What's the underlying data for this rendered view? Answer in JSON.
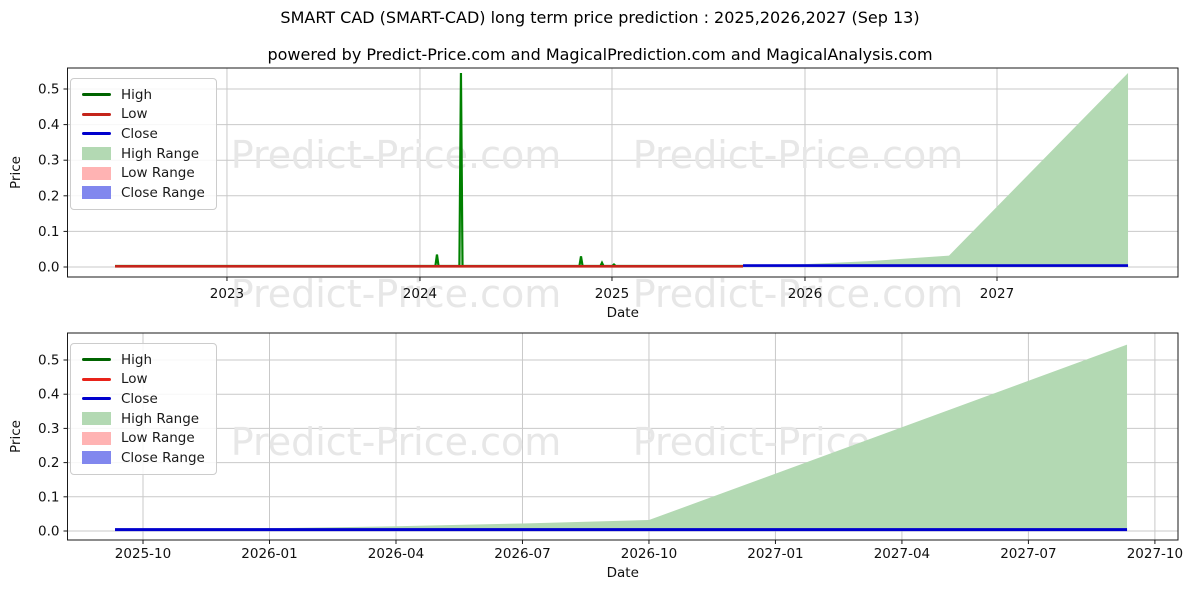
{
  "title": "SMART CAD (SMART-CAD) long term price prediction : 2025,2026,2027 (Sep 13)",
  "subtitle": "powered by Predict-Price.com and MagicalPrediction.com and MagicalAnalysis.com",
  "watermark": {
    "text": "Predict-Price.com",
    "color": "#e7e7e7"
  },
  "chart_data": [
    {
      "type": "line",
      "name": "price-history-and-prediction-by-year",
      "xlabel": "Date",
      "ylabel": "Price",
      "x_range": [
        "2022-03",
        "2027-12"
      ],
      "ylim": [
        -0.028,
        0.559
      ],
      "grid": true,
      "legend_position": "upper left",
      "yticks": [
        {
          "label": "0.0",
          "v": 0.0
        },
        {
          "label": "0.1",
          "v": 0.1
        },
        {
          "label": "0.2",
          "v": 0.2
        },
        {
          "label": "0.3",
          "v": 0.3
        },
        {
          "label": "0.4",
          "v": 0.4
        },
        {
          "label": "0.5",
          "v": 0.5
        }
      ],
      "xticks": [
        {
          "label": "2023",
          "f": 0.1436
        },
        {
          "label": "2024",
          "f": 0.3174
        },
        {
          "label": "2025",
          "f": 0.4903
        },
        {
          "label": "2026",
          "f": 0.6641
        },
        {
          "label": "2027",
          "f": 0.837
        }
      ],
      "series": [
        {
          "name": "High Range",
          "kind": "area",
          "color": "#b3d9b3",
          "base": 0,
          "points": [
            [
              0.6083,
              0.004
            ],
            [
              0.6641,
              0.008
            ],
            [
              0.72,
              0.016
            ],
            [
              0.7938,
              0.032
            ],
            [
              0.955,
              0.545
            ]
          ]
        },
        {
          "name": "Low Range",
          "kind": "area",
          "color": "#ffb3b3",
          "base": 0,
          "points": [
            [
              0.6083,
              0.003
            ],
            [
              0.955,
              0.003
            ]
          ]
        },
        {
          "name": "Close Range",
          "kind": "area",
          "color": "#8187ee",
          "base": 0.0005,
          "points": [
            [
              0.6083,
              0.0075
            ],
            [
              0.955,
              0.0075
            ]
          ]
        },
        {
          "name": "High",
          "kind": "line",
          "color": "#008000",
          "width": 2.2,
          "points": [
            [
              0.0428,
              0.003
            ],
            [
              0.3313,
              0.003
            ],
            [
              0.3327,
              0.035
            ],
            [
              0.3341,
              0.003
            ],
            [
              0.3529,
              0.003
            ],
            [
              0.3543,
              0.545
            ],
            [
              0.3557,
              0.003
            ],
            [
              0.461,
              0.003
            ],
            [
              0.4624,
              0.03
            ],
            [
              0.4638,
              0.003
            ],
            [
              0.4799,
              0.003
            ],
            [
              0.4813,
              0.012
            ],
            [
              0.4827,
              0.003
            ],
            [
              0.4907,
              0.003
            ],
            [
              0.4921,
              0.007
            ],
            [
              0.4935,
              0.003
            ],
            [
              0.6083,
              0.003
            ]
          ]
        },
        {
          "name": "Low",
          "kind": "line",
          "color": "#c4251b",
          "width": 2.6,
          "points": [
            [
              0.0428,
              0.002
            ],
            [
              0.6083,
              0.002
            ]
          ]
        },
        {
          "name": "Close",
          "kind": "line",
          "color": "#0000cd",
          "width": 2.6,
          "points": [
            [
              0.6083,
              0.004
            ],
            [
              0.955,
              0.004
            ]
          ]
        }
      ],
      "legend": [
        {
          "label": "High",
          "swatch": "line",
          "color": "#006400"
        },
        {
          "label": "Low",
          "swatch": "line",
          "color": "#c4251b"
        },
        {
          "label": "Close",
          "swatch": "line",
          "color": "#0000cd"
        },
        {
          "label": "High Range",
          "swatch": "patch",
          "color": "#b3d9b3"
        },
        {
          "label": "Low Range",
          "swatch": "patch",
          "color": "#ffb3b3"
        },
        {
          "label": "Close Range",
          "swatch": "patch",
          "color": "#8187ee"
        }
      ]
    },
    {
      "type": "line",
      "name": "price-prediction-by-quarter",
      "xlabel": "Date",
      "ylabel": "Price",
      "x_range": [
        "2025-08",
        "2027-11"
      ],
      "ylim": [
        -0.026,
        0.579
      ],
      "grid": true,
      "legend_position": "upper left",
      "yticks": [
        {
          "label": "0.0",
          "v": 0.0
        },
        {
          "label": "0.1",
          "v": 0.1
        },
        {
          "label": "0.2",
          "v": 0.2
        },
        {
          "label": "0.3",
          "v": 0.3
        },
        {
          "label": "0.4",
          "v": 0.4
        },
        {
          "label": "0.5",
          "v": 0.5
        }
      ],
      "xticks": [
        {
          "label": "2025-10",
          "f": 0.068
        },
        {
          "label": "2026-01",
          "f": 0.1819
        },
        {
          "label": "2026-04",
          "f": 0.2958
        },
        {
          "label": "2026-07",
          "f": 0.4097
        },
        {
          "label": "2026-10",
          "f": 0.5236
        },
        {
          "label": "2027-01",
          "f": 0.6375
        },
        {
          "label": "2027-04",
          "f": 0.7514
        },
        {
          "label": "2027-07",
          "f": 0.8653
        },
        {
          "label": "2027-10",
          "f": 0.9792
        }
      ],
      "series": [
        {
          "name": "High Range",
          "kind": "area",
          "color": "#b3d9b3",
          "base": 0,
          "points": [
            [
              0.0428,
              0.003
            ],
            [
              0.1819,
              0.008
            ],
            [
              0.2958,
              0.014
            ],
            [
              0.4097,
              0.022
            ],
            [
              0.5236,
              0.032
            ],
            [
              0.9541,
              0.545
            ]
          ]
        },
        {
          "name": "Low Range",
          "kind": "area",
          "color": "#ffb3b3",
          "base": 0,
          "points": [
            [
              0.0428,
              0.003
            ],
            [
              0.9541,
              0.003
            ]
          ]
        },
        {
          "name": "Close Range",
          "kind": "area",
          "color": "#8187ee",
          "base": 0.0005,
          "points": [
            [
              0.0428,
              0.0075
            ],
            [
              0.9541,
              0.0075
            ]
          ]
        },
        {
          "name": "Low",
          "kind": "line",
          "color": "#e8231a",
          "width": 2,
          "points": [
            [
              0.0428,
              0.003
            ],
            [
              0.9541,
              0.003
            ]
          ]
        },
        {
          "name": "Close",
          "kind": "line",
          "color": "#0000cd",
          "width": 3,
          "points": [
            [
              0.0428,
              0.004
            ],
            [
              0.9541,
              0.004
            ]
          ]
        }
      ],
      "legend": [
        {
          "label": "High",
          "swatch": "line",
          "color": "#006400"
        },
        {
          "label": "Low",
          "swatch": "line",
          "color": "#e8231a"
        },
        {
          "label": "Close",
          "swatch": "line",
          "color": "#0000cd"
        },
        {
          "label": "High Range",
          "swatch": "patch",
          "color": "#b3d9b3"
        },
        {
          "label": "Low Range",
          "swatch": "patch",
          "color": "#ffb3b3"
        },
        {
          "label": "Close Range",
          "swatch": "patch",
          "color": "#8187ee"
        }
      ]
    }
  ]
}
